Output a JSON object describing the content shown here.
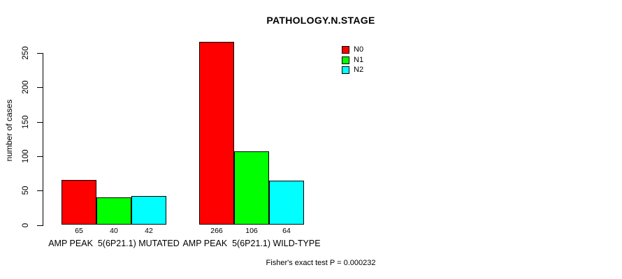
{
  "chart_data": {
    "type": "bar",
    "title": "PATHOLOGY.N.STAGE",
    "ylabel": "number of cases",
    "xlabel": "",
    "categories": [
      "AMP PEAK  5(6P21.1) MUTATED",
      "AMP PEAK  5(6P21.1) WILD-TYPE"
    ],
    "series": [
      {
        "name": "N0",
        "color": "#ff0000",
        "values": [
          65,
          266
        ]
      },
      {
        "name": "N1",
        "color": "#00ff00",
        "values": [
          40,
          106
        ]
      },
      {
        "name": "N2",
        "color": "#00ffff",
        "values": [
          42,
          64
        ]
      }
    ],
    "yticks": [
      0,
      50,
      100,
      150,
      200,
      250
    ],
    "ylim": [
      0,
      266
    ],
    "grid": false,
    "bar_labels": true,
    "legend_position": "inside-top-right",
    "annotation": "Fisher's exact test P = 0.000232"
  }
}
